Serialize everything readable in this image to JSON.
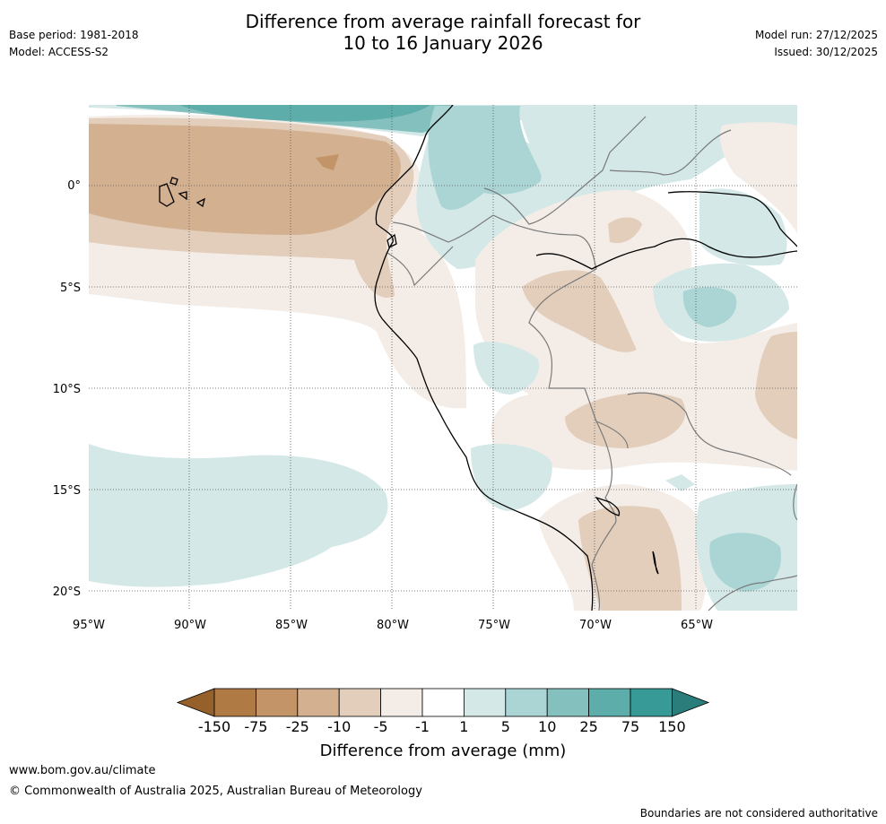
{
  "header": {
    "title_line1": "Difference from average rainfall forecast for",
    "title_line2": "10 to 16 January 2026",
    "base_period": "Base period: 1981-2018",
    "model": "Model: ACCESS-S2",
    "model_run": "Model run: 27/12/2025",
    "issued": "Issued: 30/12/2025"
  },
  "map": {
    "lat_labels": [
      "0°",
      "5°S",
      "10°S",
      "15°S",
      "20°S"
    ],
    "lon_labels": [
      "95°W",
      "90°W",
      "85°W",
      "80°W",
      "75°W",
      "70°W",
      "65°W"
    ]
  },
  "colorbar": {
    "title": "Difference from average (mm)",
    "ticks": [
      "-150",
      "-75",
      "-25",
      "-10",
      "-5",
      "-1",
      "1",
      "5",
      "10",
      "25",
      "75",
      "150"
    ],
    "colors": {
      "lt_minus150": "#95602a",
      "m150_m75": "#b07a45",
      "m75_m25": "#c29467",
      "m25_m10": "#d3b08f",
      "m10_m5": "#e2cebb",
      "m5_m1": "#f4ede7",
      "m1_1": "#ffffff",
      "p1_p5": "#d4e8e7",
      "p5_p10": "#abd4d4",
      "p10_p25": "#84c0be",
      "p25_p75": "#5dadaa",
      "p75_p150": "#379a96",
      "gt_150": "#2a7d7a"
    }
  },
  "footer": {
    "website": "www.bom.gov.au/climate",
    "copyright": "© Commonwealth of Australia 2025, Australian Bureau of Meteorology",
    "disclaimer": "Boundaries are not considered authoritative"
  }
}
